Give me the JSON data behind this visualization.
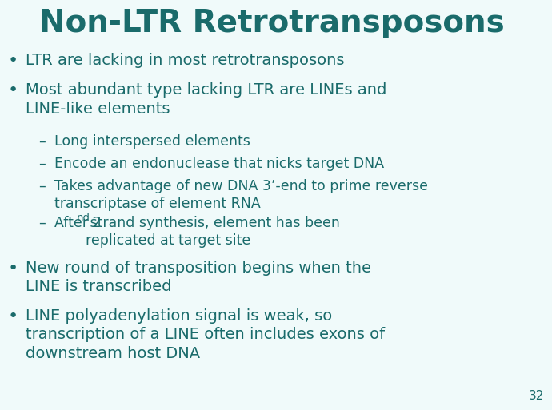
{
  "title": "Non-LTR Retrotransposons",
  "title_color": "#1a6b6b",
  "title_fontsize": 28,
  "background_color": "#f0fafa",
  "text_color": "#1a6b6b",
  "page_number": "32",
  "bullet_fontsize": 14,
  "sub_fontsize": 12.5,
  "page_num_fontsize": 11
}
